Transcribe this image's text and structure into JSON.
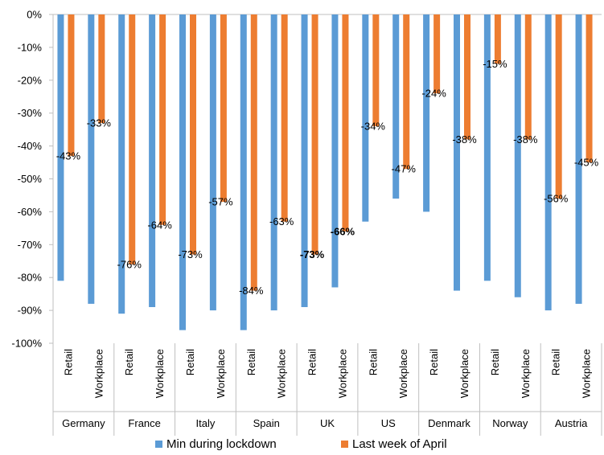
{
  "chart_data": {
    "type": "bar",
    "ylim": [
      -100,
      0
    ],
    "y_ticks": [
      "0%",
      "-10%",
      "-20%",
      "-30%",
      "-40%",
      "-50%",
      "-60%",
      "-70%",
      "-80%",
      "-90%",
      "-100%"
    ],
    "countries": [
      "Germany",
      "France",
      "Italy",
      "Spain",
      "UK",
      "US",
      "Denmark",
      "Norway",
      "Austria"
    ],
    "subcategories": [
      "Retail",
      "Workplace"
    ],
    "series": [
      {
        "name": "Min during lockdown",
        "color": "#5B9BD5",
        "values": [
          -81,
          -88,
          -91,
          -89,
          -96,
          -90,
          -96,
          -90,
          -89,
          -83,
          -63,
          -56,
          -60,
          -84,
          -81,
          -86,
          -90,
          -88
        ]
      },
      {
        "name": "Last week of April",
        "color": "#ED7D31",
        "values": [
          -43,
          -33,
          -76,
          -64,
          -73,
          -57,
          -84,
          -63,
          -73,
          -66,
          -34,
          -47,
          -24,
          -38,
          -15,
          -38,
          -56,
          -45
        ],
        "labels": [
          "-43%",
          "-33%",
          "-76%",
          "-64%",
          "-73%",
          "-57%",
          "-84%",
          "-63%",
          "-73%",
          "-66%",
          "-34%",
          "-47%",
          "-24%",
          "-38%",
          "-15%",
          "-38%",
          "-56%",
          "-45%"
        ],
        "bold_labels": [
          8,
          9
        ]
      }
    ],
    "legend_position": "bottom",
    "grid": false
  }
}
